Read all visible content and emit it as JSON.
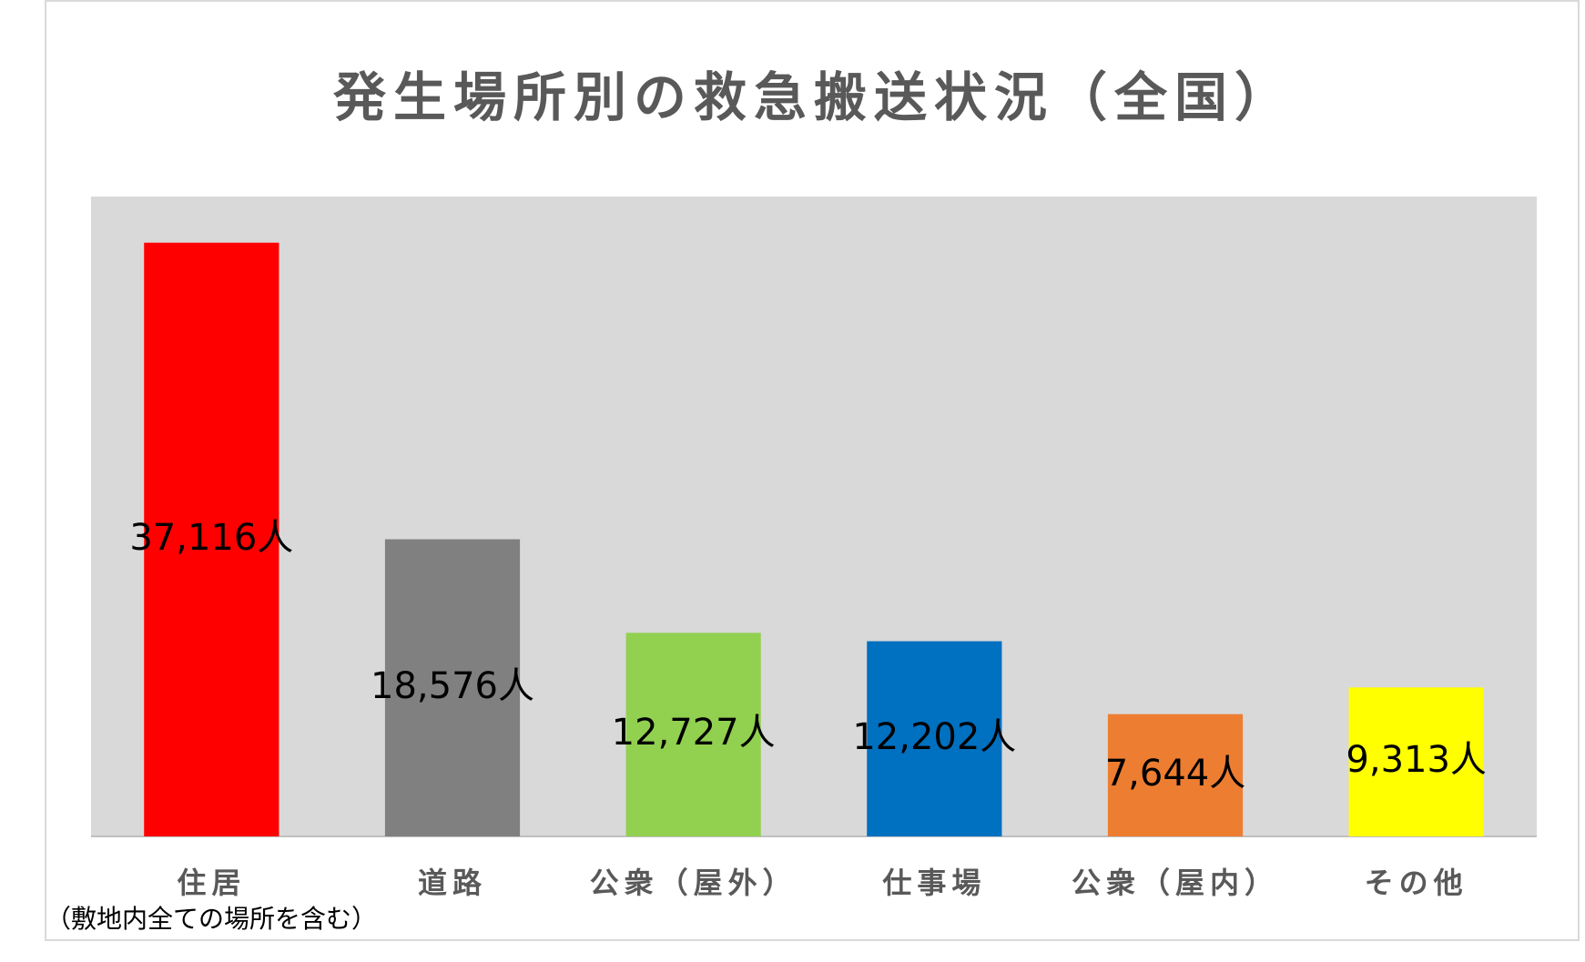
{
  "chart_data": {
    "type": "bar",
    "title": "発生場所別の救急搬送状況（全国）",
    "categories": [
      "住居",
      "道路",
      "公衆（屋外）",
      "仕事場",
      "公衆（屋内）",
      "その他"
    ],
    "values": [
      37116,
      18576,
      12727,
      12202,
      7644,
      9313
    ],
    "value_labels": [
      "37,116人",
      "18,576人",
      "12,727人",
      "12,202人",
      "7,644人",
      "9,313人"
    ],
    "colors": [
      "#ff0000",
      "#808080",
      "#92d050",
      "#0070c0",
      "#ed7d31",
      "#ffff00"
    ],
    "annotation": "（敷地内全ての場所を含む）",
    "ylim": [
      0,
      40000
    ]
  }
}
